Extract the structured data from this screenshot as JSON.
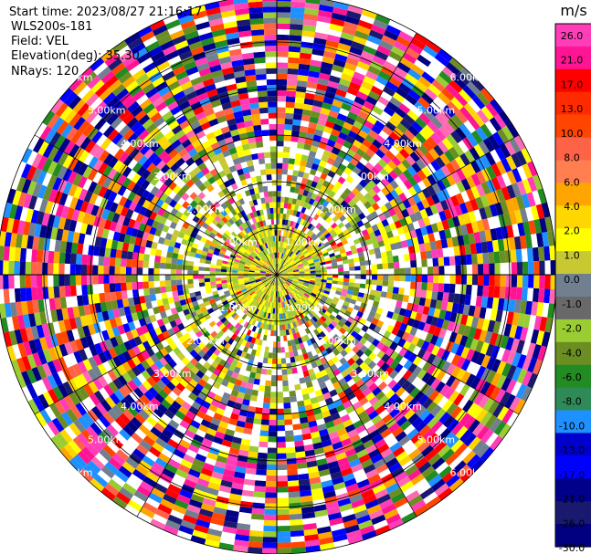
{
  "header": {
    "start_time": "Start time: 2023/08/27 21:16:17",
    "instrument": "WLS200s-181",
    "field": "Field: VEL",
    "elevation": "Elevation(deg): 35.30",
    "nrays": "NRays: 120"
  },
  "chart_data": {
    "type": "heatmap",
    "subtype": "polar-ppi",
    "field": "VEL",
    "units": "m/s",
    "nrays": 120,
    "range_rings_km": [
      1,
      2,
      3,
      4,
      5,
      6
    ],
    "range_ring_labels": [
      "1.00km",
      "2.00km",
      "3.00km",
      "4.00km",
      "5.00km",
      "6.00km"
    ],
    "colorbar": {
      "label": "m/s",
      "ticks": [
        "26.0",
        "21.0",
        "17.0",
        "13.0",
        "10.0",
        "8.0",
        "6.0",
        "4.0",
        "2.0",
        "1.0",
        "0.0",
        "-1.0",
        "-2.0",
        "-4.0",
        "-6.0",
        "-8.0",
        "-10.0",
        "-13.0",
        "-17.0",
        "-21.0",
        "-26.0",
        "-30.0"
      ],
      "colors": [
        "#ff3db8",
        "#ff1493",
        "#ff0000",
        "#ff2b00",
        "#ff4500",
        "#ff6347",
        "#ff7f50",
        "#ffa500",
        "#ffd700",
        "#ffff00",
        "#c8c832",
        "#708090",
        "#696969",
        "#9acd32",
        "#6b8e23",
        "#228b22",
        "#2e8b57",
        "#1e90ff",
        "#0000cd",
        "#0000ff",
        "#00008b",
        "#191970",
        "#000080"
      ]
    },
    "pattern": "inner region (<~3km) dominated by yellow/olive-green near-zero velocities; outer region noise with random colors"
  }
}
